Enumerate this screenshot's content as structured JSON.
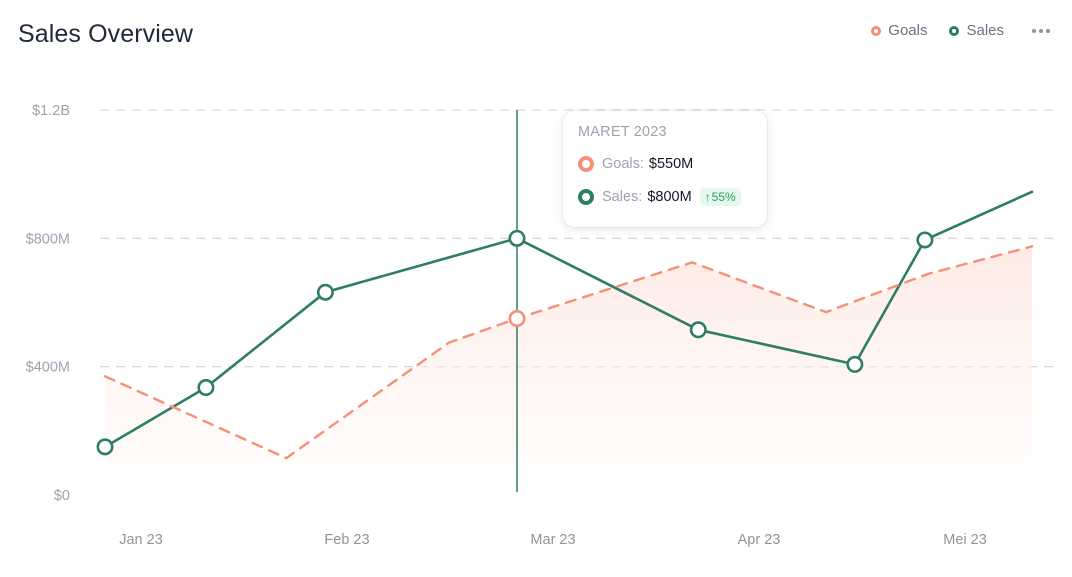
{
  "header": {
    "title": "Sales Overview",
    "legend": [
      {
        "label": "Goals",
        "color": "#f4907a"
      },
      {
        "label": "Sales",
        "color": "#2e7d64"
      }
    ],
    "menu_icon": "more-horizontal-icon"
  },
  "tooltip": {
    "title": "MARET 2023",
    "goals_label": "Goals:",
    "goals_value": "$550M",
    "sales_label": "Sales:",
    "sales_value": "$800M",
    "badge_icon": "arrow-up-icon",
    "badge_arrow": "↑",
    "badge_text": "55%"
  },
  "chart_data": {
    "type": "line",
    "title": "Sales Overview",
    "x_tick_labels": [
      "Jan 23",
      "Feb 23",
      "Mar 23",
      "Apr 23",
      "Mei 23"
    ],
    "y_tick_labels": [
      "$0",
      "$400M",
      "$800M",
      "$1.2B"
    ],
    "ylim": [
      0,
      1200
    ],
    "y_unit": "M",
    "xlim": [
      0,
      4.5
    ],
    "grid": true,
    "legend_position": "top-right",
    "highlight_x": 2,
    "series": [
      {
        "name": "Sales",
        "color": "#2e7d64",
        "style": "solid",
        "points": [
          {
            "x": 0.0,
            "y": 150
          },
          {
            "x": 0.49,
            "y": 335
          },
          {
            "x": 1.07,
            "y": 632
          },
          {
            "x": 2.0,
            "y": 800
          },
          {
            "x": 2.88,
            "y": 515
          },
          {
            "x": 3.64,
            "y": 407
          },
          {
            "x": 3.98,
            "y": 795
          },
          {
            "x": 4.5,
            "y": 945
          }
        ],
        "markers": [
          0,
          1,
          2,
          3,
          4,
          5,
          6
        ]
      },
      {
        "name": "Goals",
        "color": "#f4907a",
        "style": "dashed",
        "area": true,
        "points": [
          {
            "x": 0.0,
            "y": 370
          },
          {
            "x": 0.88,
            "y": 115
          },
          {
            "x": 1.67,
            "y": 475
          },
          {
            "x": 2.0,
            "y": 550
          },
          {
            "x": 2.85,
            "y": 725
          },
          {
            "x": 3.5,
            "y": 570
          },
          {
            "x": 4.0,
            "y": 690
          },
          {
            "x": 4.5,
            "y": 775
          }
        ],
        "markers": [
          3
        ]
      }
    ]
  }
}
